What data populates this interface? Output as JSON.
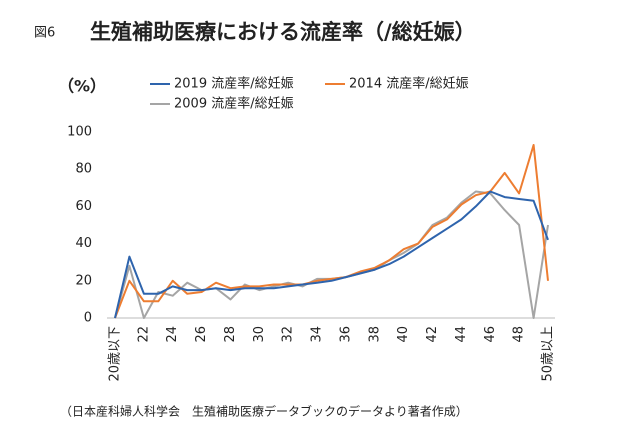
{
  "chart_data": {
    "type": "line",
    "figure_label": "図6",
    "title": "生殖補助医療における流産率（/総妊娠）",
    "y_unit": "（%）",
    "source": "（日本産科婦人科学会　生殖補助医療データブックのデータより著者作成）",
    "categories": [
      "20歳以下",
      null,
      "22",
      null,
      "24",
      null,
      "26",
      null,
      "28",
      null,
      "30",
      null,
      "32",
      null,
      "34",
      null,
      "36",
      null,
      "38",
      null,
      "40",
      null,
      "42",
      null,
      "44",
      null,
      "46",
      null,
      "48",
      null,
      "50歳以上"
    ],
    "series": [
      {
        "name": "2019 流産率/総妊娠",
        "color": "#2e64ad",
        "values": [
          0,
          33,
          13,
          13,
          17,
          15,
          15,
          16,
          15,
          16,
          16,
          16,
          17,
          18,
          19,
          20,
          22,
          24,
          26,
          29,
          33,
          38,
          43,
          48,
          53,
          60,
          68,
          65,
          64,
          63,
          42
        ]
      },
      {
        "name": "2014 流産率/総妊娠",
        "color": "#ed7d31",
        "values": [
          0,
          20,
          9,
          9,
          20,
          13,
          14,
          19,
          16,
          17,
          17,
          18,
          18,
          18,
          20,
          21,
          22,
          25,
          27,
          31,
          37,
          40,
          49,
          53,
          61,
          66,
          68,
          78,
          67,
          93,
          20
        ]
      },
      {
        "name": "2009 流産率/総妊娠",
        "color": "#a5a5a5",
        "values": [
          0,
          28,
          0,
          14,
          12,
          19,
          15,
          16,
          10,
          18,
          15,
          17,
          19,
          17,
          21,
          21,
          22,
          24,
          26,
          31,
          35,
          40,
          50,
          54,
          62,
          68,
          67,
          58,
          50,
          0,
          50
        ]
      }
    ],
    "ylim": [
      0,
      100
    ],
    "yticks": [
      0,
      20,
      40,
      60,
      80,
      100
    ],
    "grid": false
  }
}
